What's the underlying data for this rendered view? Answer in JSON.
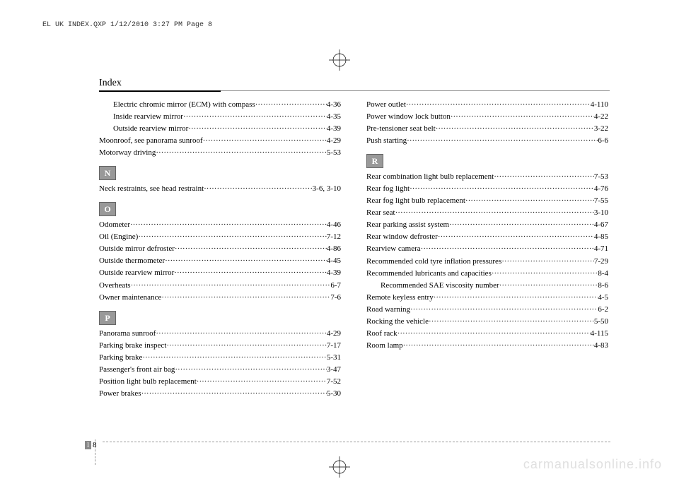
{
  "meta": {
    "header_text": "EL UK INDEX.QXP  1/12/2010  3:27 PM  Page 8",
    "heading": "Index",
    "watermark": "carmanualsonline.info",
    "footer_tab": "I",
    "footer_num": "8"
  },
  "left": {
    "group1": [
      {
        "label": "Electric chromic mirror (ECM) with compass",
        "page": "4-36",
        "indent": 1
      },
      {
        "label": "Inside rearview mirror",
        "page": "4-35",
        "indent": 1
      },
      {
        "label": "Outside rearview mirror",
        "page": "4-39",
        "indent": 1
      },
      {
        "label": "Moonroof, see panorama sunroof",
        "page": "4-29",
        "indent": 0
      },
      {
        "label": "Motorway driving",
        "page": "5-53",
        "indent": 0
      }
    ],
    "letterN": "N",
    "groupN": [
      {
        "label": "Neck restraints, see head restraint",
        "page": "3-6, 3-10",
        "indent": 0
      }
    ],
    "letterO": "O",
    "groupO": [
      {
        "label": "Odometer",
        "page": "4-46",
        "indent": 0
      },
      {
        "label": "Oil (Engine)",
        "page": "7-12",
        "indent": 0
      },
      {
        "label": "Outside mirror defroster",
        "page": "4-86",
        "indent": 0
      },
      {
        "label": "Outside thermometer",
        "page": "4-45",
        "indent": 0
      },
      {
        "label": "Outside rearview mirror",
        "page": "4-39",
        "indent": 0
      },
      {
        "label": "Overheats",
        "page": "6-7",
        "indent": 0
      },
      {
        "label": "Owner maintenance",
        "page": "7-6",
        "indent": 0
      }
    ],
    "letterP": "P",
    "groupP": [
      {
        "label": "Panorama sunroof",
        "page": "4-29",
        "indent": 0
      },
      {
        "label": "Parking brake inspect",
        "page": "7-17",
        "indent": 0
      },
      {
        "label": "Parking brake",
        "page": "5-31",
        "indent": 0
      },
      {
        "label": "Passenger's front air bag",
        "page": "3-47",
        "indent": 0
      },
      {
        "label": "Position light bulb replacement",
        "page": "7-52",
        "indent": 0
      },
      {
        "label": "Power brakes",
        "page": "5-30",
        "indent": 0
      }
    ]
  },
  "right": {
    "group1": [
      {
        "label": "Power outlet",
        "page": "4-110",
        "indent": 0
      },
      {
        "label": "Power window lock button",
        "page": "4-22",
        "indent": 0
      },
      {
        "label": "Pre-tensioner seat belt",
        "page": "3-22",
        "indent": 0
      },
      {
        "label": "Push starting",
        "page": "6-6",
        "indent": 0
      }
    ],
    "letterR": "R",
    "groupR": [
      {
        "label": "Rear combination light bulb replacement",
        "page": "7-53",
        "indent": 0
      },
      {
        "label": "Rear fog light",
        "page": "4-76",
        "indent": 0
      },
      {
        "label": "Rear fog light bulb replacement",
        "page": "7-55",
        "indent": 0
      },
      {
        "label": "Rear seat",
        "page": "3-10",
        "indent": 0
      },
      {
        "label": "Rear parking assist system",
        "page": "4-67",
        "indent": 0
      },
      {
        "label": "Rear window defroster",
        "page": "4-85",
        "indent": 0
      },
      {
        "label": "Rearview camera",
        "page": "4-71",
        "indent": 0
      },
      {
        "label": "Recommended cold tyre inflation pressures",
        "page": "7-29",
        "indent": 0
      },
      {
        "label": "Recommended lubricants and capacities",
        "page": "8-4",
        "indent": 0
      },
      {
        "label": "Recommended SAE viscosity number",
        "page": "8-6",
        "indent": 1
      },
      {
        "label": "Remote keyless entry",
        "page": "4-5",
        "indent": 0
      },
      {
        "label": "Road warning",
        "page": "6-2",
        "indent": 0
      },
      {
        "label": "Rocking the vehicle",
        "page": "5-50",
        "indent": 0
      },
      {
        "label": "Roof rack",
        "page": "4-115",
        "indent": 0
      },
      {
        "label": "Room lamp",
        "page": "4-83",
        "indent": 0
      }
    ]
  },
  "style": {
    "bg": "#ffffff",
    "text": "#000000",
    "section_bg": "#999999",
    "section_fg": "#ffffff",
    "watermark_color": "#e0e0e0",
    "font_body": 11,
    "font_heading": 14
  }
}
